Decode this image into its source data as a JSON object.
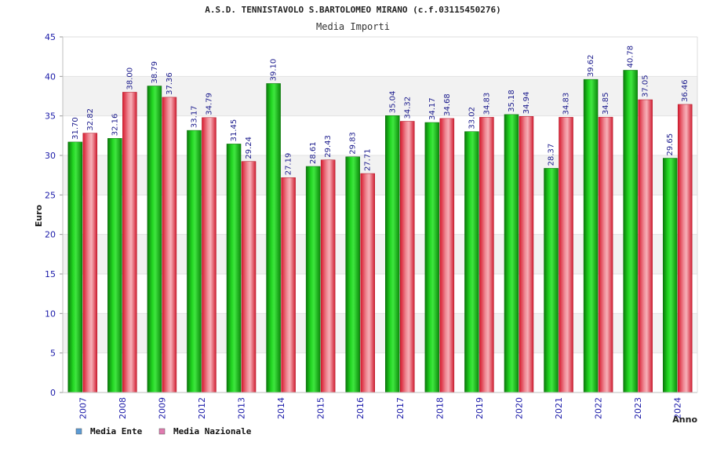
{
  "colors": {
    "ente_bar": "#17b317",
    "nazionale_bar": "#e8515f",
    "ente_legend": "#5b9bd5",
    "nazionale_legend": "#e07bb0",
    "band": "#f2f2f2",
    "tick": "#1a1aa8"
  },
  "chart_data": {
    "type": "bar",
    "title": "A.S.D. TENNISTAVOLO S.BARTOLOMEO MIRANO (c.f.03115450276)",
    "subtitle": "Media Importi",
    "xlabel": "Anno",
    "ylabel": "Euro",
    "ylim": [
      0,
      45
    ],
    "yticks": [
      0,
      5,
      10,
      15,
      20,
      25,
      30,
      35,
      40,
      45
    ],
    "grid": "horizontal",
    "legend_position": "bottom-left",
    "categories": [
      "2007",
      "2008",
      "2009",
      "2012",
      "2013",
      "2014",
      "2015",
      "2016",
      "2017",
      "2018",
      "2019",
      "2020",
      "2021",
      "2022",
      "2023",
      "2024"
    ],
    "series": [
      {
        "name": "Media Ente",
        "values": [
          31.7,
          32.16,
          38.79,
          33.17,
          31.45,
          39.1,
          28.61,
          29.83,
          35.04,
          34.17,
          33.02,
          35.18,
          28.37,
          39.62,
          40.78,
          29.65
        ],
        "labels": [
          "31.70",
          "32.16",
          "38.79",
          "33.17",
          "31.45",
          "39.10",
          "28.61",
          "29.83",
          "35.04",
          "34.17",
          "33.02",
          "35.18",
          "28.37",
          "39.62",
          "40.78",
          "29.65"
        ]
      },
      {
        "name": "Media Nazionale",
        "values": [
          32.82,
          38.0,
          37.36,
          34.79,
          29.24,
          27.19,
          29.43,
          27.71,
          34.32,
          34.68,
          34.83,
          34.94,
          34.83,
          34.85,
          37.05,
          36.46
        ],
        "labels": [
          "32.82",
          "38.00",
          "37.36",
          "34.79",
          "29.24",
          "27.19",
          "29.43",
          "27.71",
          "34.32",
          "34.68",
          "34.83",
          "34.94",
          "34.83",
          "34.85",
          "37.05",
          "36.46"
        ]
      }
    ]
  }
}
